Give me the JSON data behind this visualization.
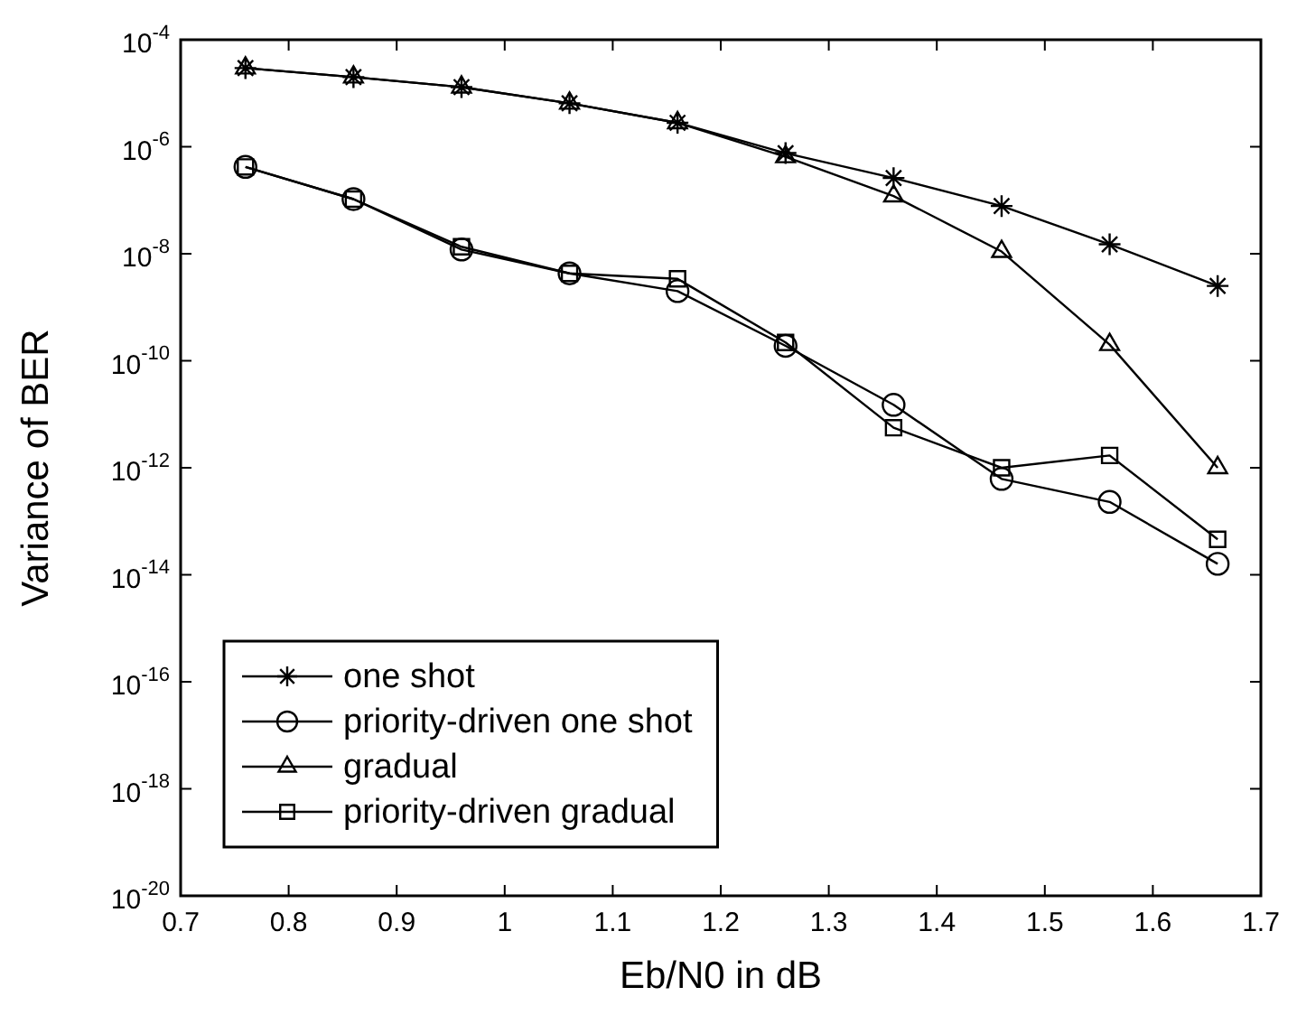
{
  "chart_data": {
    "type": "line",
    "xlabel": "Eb/N0 in dB",
    "ylabel": "Variance of BER",
    "log": "y",
    "grid": false,
    "legend": "bottom left",
    "line_style": "solid",
    "x": [
      0.76,
      0.86,
      0.96,
      1.06,
      1.16,
      1.26,
      1.36,
      1.46,
      1.56,
      1.66
    ],
    "xlim": [
      0.7,
      1.7
    ],
    "xticks": [
      0.7,
      0.8,
      0.9,
      1,
      1.1,
      1.2,
      1.3,
      1.4,
      1.5,
      1.6,
      1.7
    ],
    "ylim": [
      1e-20,
      0.0001
    ],
    "yticks": [
      {
        "value": 1e-20,
        "label": "10$^{-20}$"
      },
      {
        "value": 1e-18,
        "label": "10$^{-18}$"
      },
      {
        "value": 1e-16,
        "label": "10$^{-16}$"
      },
      {
        "value": 1e-14,
        "label": "10$^{-14}$"
      },
      {
        "value": 1e-12,
        "label": "10$^{-12}$"
      },
      {
        "value": 1e-10,
        "label": "10$^{-10}$"
      },
      {
        "value": 1e-08,
        "label": "10$^{-8}$"
      },
      {
        "value": 1e-06,
        "label": "10$^{-6}$"
      },
      {
        "value": 0.0001,
        "label": "10$^{-4}$"
      }
    ],
    "series": [
      {
        "name": "one shot",
        "color": "#000000",
        "marker": "cross",
        "values": [
          2.95e-05,
          2e-05,
          1.3e-05,
          6.5e-06,
          2.8e-06,
          7.6e-07,
          2.6e-07,
          7.8e-08,
          1.5e-08,
          2.5e-09
        ]
      },
      {
        "name": "priority-driven one shot",
        "color": "#000000",
        "marker": "circle",
        "values": [
          4.2e-07,
          1.05e-07,
          1.2e-08,
          4.3e-09,
          2e-09,
          1.9e-10,
          1.5e-11,
          6.2e-13,
          2.3e-13,
          1.6e-14
        ]
      },
      {
        "name": "gradual",
        "color": "#000000",
        "marker": "triangle",
        "values": [
          2.95e-05,
          2e-05,
          1.3e-05,
          6.5e-06,
          2.8e-06,
          6.5e-07,
          1.2e-07,
          1.1e-08,
          2e-10,
          1e-12
        ]
      },
      {
        "name": "priority-driven gradual",
        "color": "#000000",
        "marker": "square",
        "values": [
          4.2e-07,
          1.05e-07,
          1.35e-08,
          4.3e-09,
          3.4e-09,
          2.2e-10,
          5.6e-12,
          1e-12,
          1.7e-12,
          4.6e-14
        ]
      }
    ]
  }
}
